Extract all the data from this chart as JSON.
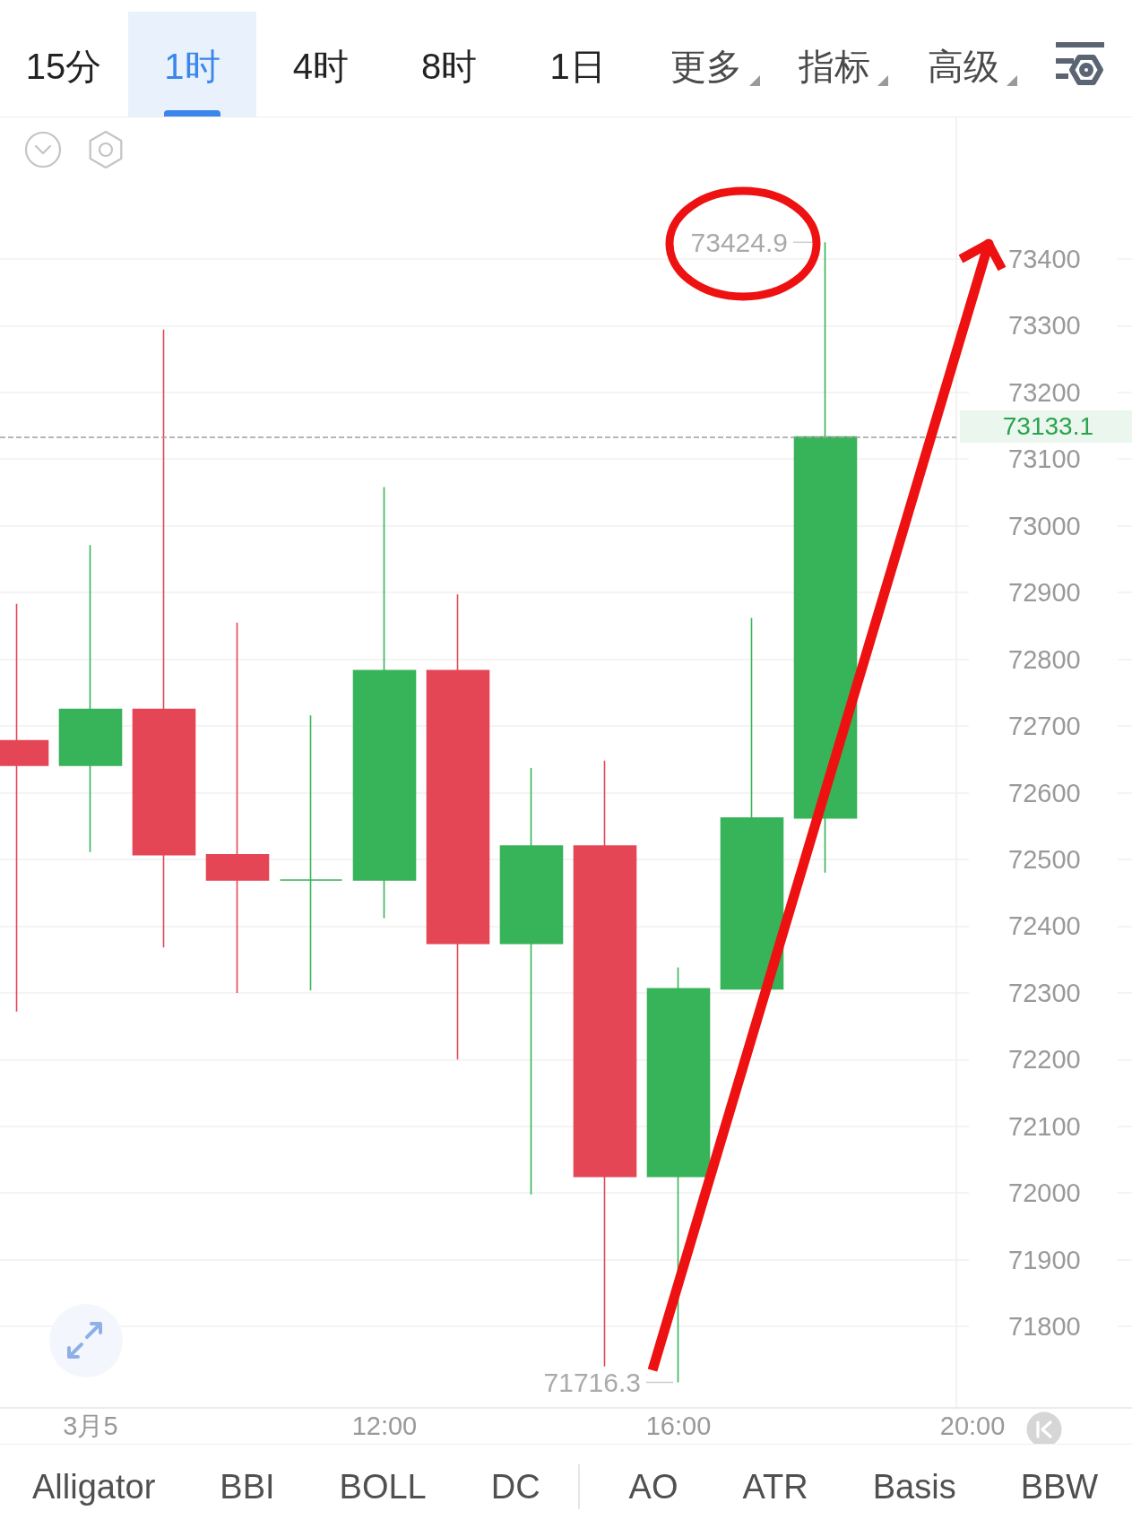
{
  "chart_data": [
    {
      "type": "other",
      "annotations": [
        "15分",
        "1时",
        "4时",
        "8时",
        "1日",
        "更多",
        "指标",
        "高级"
      ]
    },
    {
      "type": "candlestick",
      "x": [
        7,
        8,
        9,
        10,
        11,
        12,
        13,
        14,
        15,
        16,
        17,
        18
      ],
      "ohlc": [
        [
          72678,
          72883,
          72272,
          72641
        ],
        [
          72641,
          72971,
          72511,
          72725
        ],
        [
          72725,
          73294,
          72368,
          72507
        ],
        [
          72507,
          72855,
          72300,
          72469
        ],
        [
          72469,
          72716,
          72304,
          72469
        ],
        [
          72469,
          73058,
          72412,
          72783
        ],
        [
          72783,
          72897,
          72200,
          72374
        ],
        [
          72374,
          72637,
          71998,
          72520
        ],
        [
          72520,
          72648,
          71740,
          72025
        ],
        [
          72025,
          72338,
          71716.3,
          72306
        ],
        [
          72306,
          72862,
          72306,
          72562
        ],
        [
          72562,
          73424.9,
          72480,
          73133.1
        ]
      ],
      "colors": [
        "#e44655",
        "#37b359",
        "#e44655",
        "#e44655",
        "#37b359",
        "#37b359",
        "#e44655",
        "#37b359",
        "#e44655",
        "#37b359",
        "#37b359",
        "#37b359"
      ],
      "xlim": [
        6.77,
        22.17
      ],
      "xticks": [
        {
          "value": 8,
          "label": "3月5"
        },
        {
          "value": 12,
          "label": "12:00"
        },
        {
          "value": 16,
          "label": "16:00"
        },
        {
          "value": 20,
          "label": "20:00"
        }
      ],
      "ylim": [
        71678,
        73612
      ],
      "yticks": [
        71800,
        71900,
        72000,
        72100,
        72200,
        72300,
        72400,
        72500,
        72600,
        72700,
        72800,
        72900,
        73000,
        73100,
        73200,
        73300,
        73400
      ],
      "grid": "y",
      "ref_lines": [
        {
          "axis": "y",
          "value": 73133.1,
          "label": "73133.1",
          "color": "#a0a0a0",
          "line_style": "dashed"
        }
      ],
      "annotations": [
        {
          "text": "73424.9",
          "x": 18,
          "y": 73424.9
        },
        {
          "text": "71716.3",
          "x": 16,
          "y": 71716.3
        }
      ]
    },
    {
      "type": "other",
      "annotations": [
        "Alligator",
        "BBI",
        "BOLL",
        "DC",
        "AO",
        "ATR",
        "Basis",
        "BBW"
      ]
    }
  ]
}
